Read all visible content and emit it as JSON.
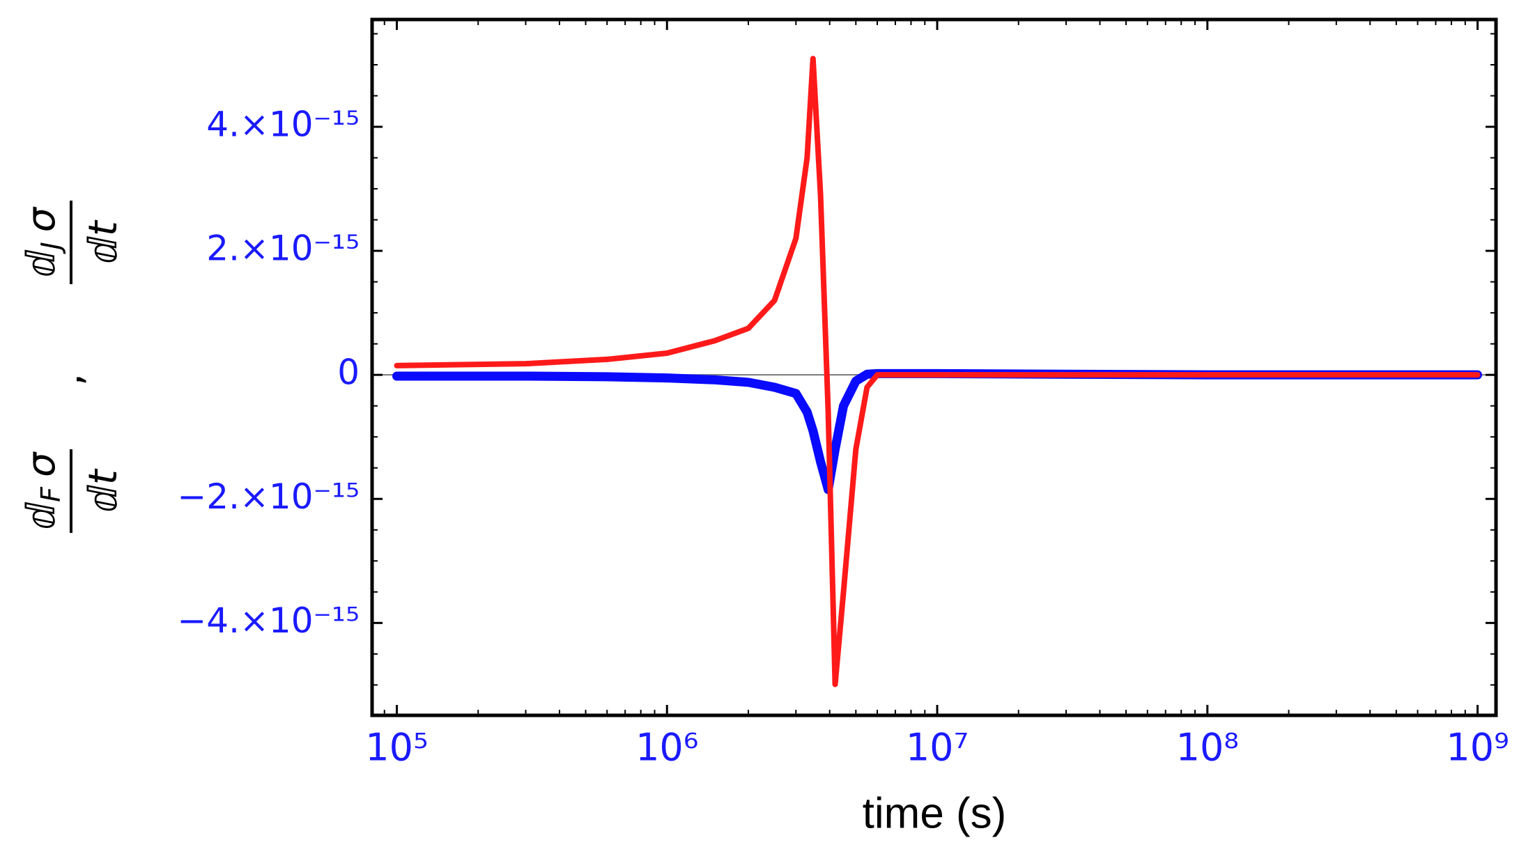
{
  "chart_data": {
    "type": "line",
    "xlabel": "time (s)",
    "ylabel": {
      "terms": [
        {
          "d": "ⅆ",
          "sub": "F",
          "var": "σ",
          "den": "ⅆt"
        },
        {
          "d": "ⅆ",
          "sub": "J",
          "var": "σ",
          "den": "ⅆt"
        }
      ],
      "separator": ","
    },
    "xscale": "log",
    "xlim": [
      81000,
      1170000000
    ],
    "xticks": [
      {
        "value": 100000,
        "label": "10⁵"
      },
      {
        "value": 1000000,
        "label": "10⁶"
      },
      {
        "value": 10000000,
        "label": "10⁷"
      },
      {
        "value": 100000000,
        "label": "10⁸"
      },
      {
        "value": 1000000000,
        "label": "10⁹"
      }
    ],
    "ylim": [
      -5.49e-15,
      5.73e-15
    ],
    "yticks": [
      {
        "value": -4e-15,
        "label": "−4.×10⁻¹⁵"
      },
      {
        "value": -2e-15,
        "label": "−2.×10⁻¹⁵"
      },
      0,
      {
        "value": 2e-15,
        "label": "2.×10⁻¹⁵"
      },
      {
        "value": 4e-15,
        "label": "4.×10⁻¹⁵"
      }
    ],
    "tick_label_color": "#1a1aff",
    "x": [
      100000,
      300000,
      600000,
      1000000,
      1500000,
      2000000,
      2500000,
      3000000,
      3300000,
      3470000,
      3700000,
      3950000,
      4190000,
      4500000,
      5000000,
      5500000,
      6000000,
      10000000,
      100000000,
      1000000000
    ],
    "series": [
      {
        "color": "#0a0aff",
        "values": [
          -2e-17,
          -2e-17,
          -3e-17,
          -5e-17,
          -8e-17,
          -1.2e-16,
          -2e-16,
          -3e-16,
          -6e-16,
          -9e-16,
          -1.4e-15,
          -1.85e-15,
          -1.2e-15,
          -5e-16,
          -1e-16,
          1e-17,
          2e-17,
          2e-17,
          0,
          0
        ]
      },
      {
        "color": "#ff1a1a",
        "values": [
          1.5e-16,
          1.8e-16,
          2.5e-16,
          3.5e-16,
          5.5e-16,
          7.5e-16,
          1.2e-15,
          2.2e-15,
          3.5e-15,
          5.1e-15,
          2.9e-15,
          -6e-16,
          -4.99e-15,
          -3.5e-15,
          -1.2e-15,
          -2e-16,
          0,
          0,
          0,
          0
        ]
      }
    ]
  }
}
